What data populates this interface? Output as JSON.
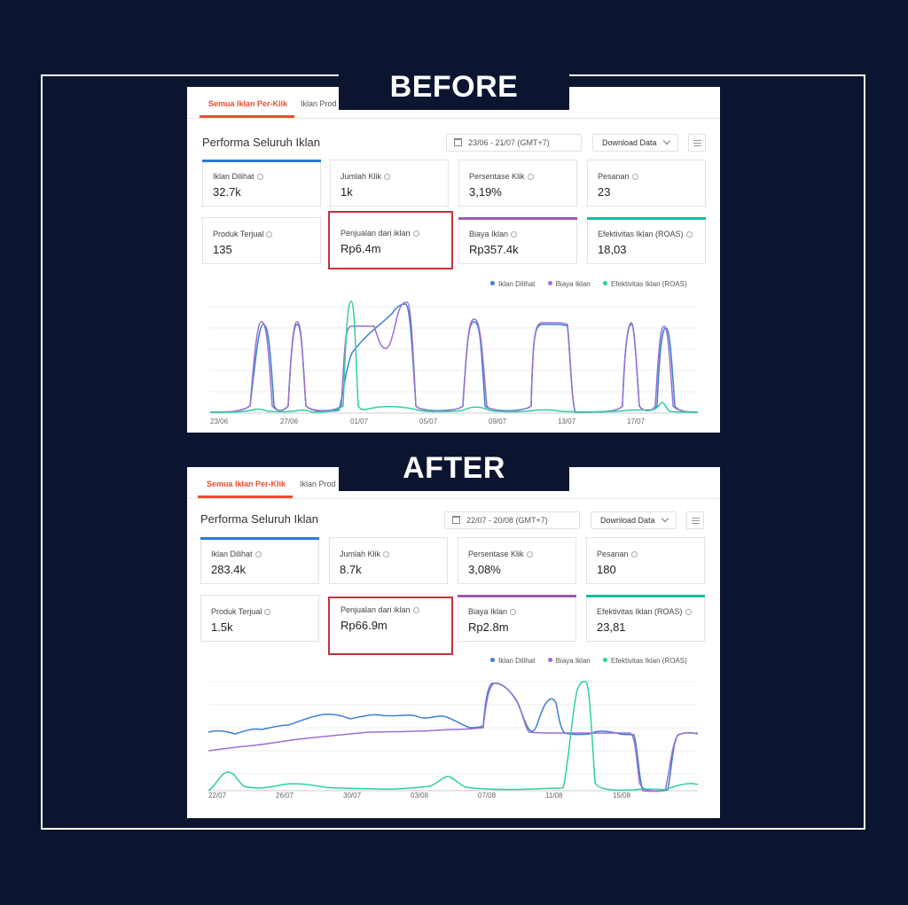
{
  "before": {
    "label": "BEFORE",
    "tabs": [
      "Semua Iklan Per-Klik",
      "Iklan Prod"
    ],
    "section_title": "Performa Seluruh Iklan",
    "date_range": "23/06 - 21/07 (GMT+7)",
    "download_label": "Download Data",
    "metrics": [
      {
        "title": "Iklan Dilihat",
        "value": "32.7k",
        "accent": "#2a7bd5"
      },
      {
        "title": "Jumlah Klik",
        "value": "1k",
        "accent": ""
      },
      {
        "title": "Persentase Klik",
        "value": "3,19%",
        "accent": ""
      },
      {
        "title": "Pesanan",
        "value": "23",
        "accent": ""
      },
      {
        "title": "Produk Terjual",
        "value": "135",
        "accent": ""
      },
      {
        "title": "Penjualan dari iklan",
        "value": "Rp6.4m",
        "accent": "",
        "highlight": true
      },
      {
        "title": "Biaya Iklan",
        "value": "Rp357.4k",
        "accent": "#9b59b6"
      },
      {
        "title": "Efektivitas Iklan (ROAS)",
        "value": "18,03",
        "accent": "#1abc9c"
      }
    ],
    "legend": [
      "Iklan Dilihat",
      "Biaya Iklan",
      "Efektivitas Iklan (ROAS)"
    ],
    "x_ticks": [
      "23/06",
      "27/06",
      "01/07",
      "05/07",
      "09/07",
      "13/07",
      "17/07"
    ]
  },
  "after": {
    "label": "AFTER",
    "tabs": [
      "Semua Iklan Per-Klik",
      "Iklan Prod"
    ],
    "section_title": "Performa Seluruh Iklan",
    "date_range": "22/07 - 20/08 (GMT+7)",
    "download_label": "Download Data",
    "metrics": [
      {
        "title": "Iklan Dilihat",
        "value": "283.4k",
        "accent": "#2a7bd5"
      },
      {
        "title": "Jumlah Klik",
        "value": "8.7k",
        "accent": ""
      },
      {
        "title": "Persentase Klik",
        "value": "3,08%",
        "accent": ""
      },
      {
        "title": "Pesanan",
        "value": "180",
        "accent": ""
      },
      {
        "title": "Produk Terjual",
        "value": "1.5k",
        "accent": ""
      },
      {
        "title": "Penjualan dari iklan",
        "value": "Rp66.9m",
        "accent": "",
        "highlight": true
      },
      {
        "title": "Biaya Iklan",
        "value": "Rp2.8m",
        "accent": "#9b59b6"
      },
      {
        "title": "Efektivitas Iklan (ROAS)",
        "value": "23,81",
        "accent": "#1abc9c"
      }
    ],
    "legend": [
      "Iklan Dilihat",
      "Biaya Iklan",
      "Efektivitas Iklan (ROAS)"
    ],
    "x_ticks": [
      "22/07",
      "26/07",
      "30/07",
      "03/08",
      "07/08",
      "11/08",
      "15/08"
    ]
  },
  "colors": {
    "blue": "#3a7fd4",
    "purple": "#9b6fd0",
    "teal": "#2ecfa6",
    "orange": "#ee4d2d",
    "highlight": "#c0353b",
    "background": "#0b1530"
  }
}
